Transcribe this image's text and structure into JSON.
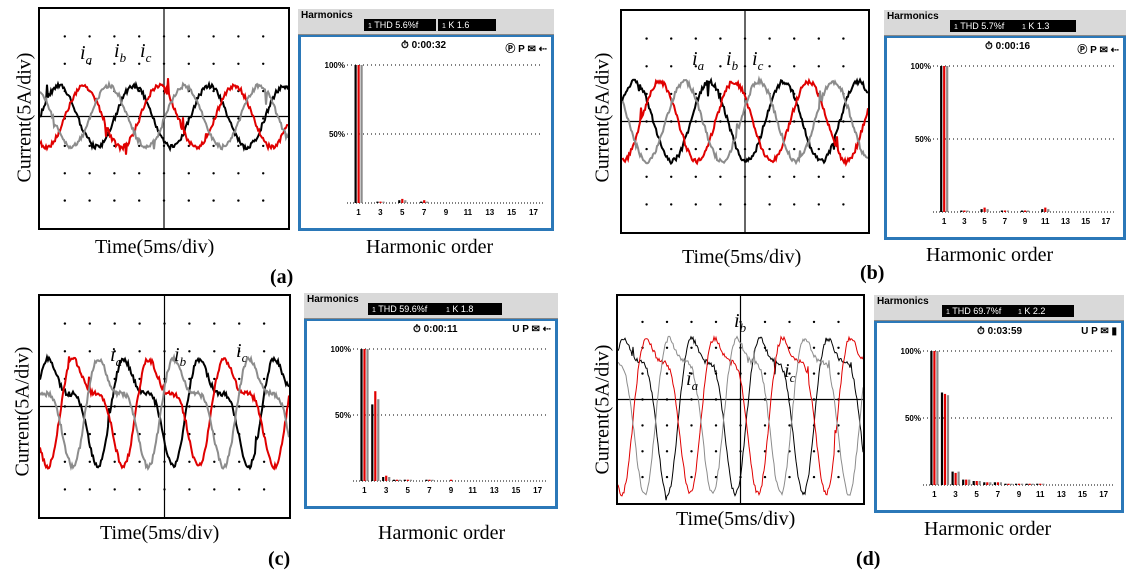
{
  "panels": [
    {
      "letter": "(a)",
      "ylabel": "Current(5A/div)",
      "xlabel": "Time(5ms/div)",
      "series_labels": [
        "ia",
        "ib",
        "ic"
      ],
      "harmonics_title": "Harmonics",
      "thd_text": "THD  5.6%f",
      "thd_prefix": "1",
      "k_text": "K   1.6",
      "k_prefix": "1",
      "timer": "0:00:32",
      "status_icons": "Ⓟ P ✉ ⇠",
      "harmonic_xlabel": "Harmonic order"
    },
    {
      "letter": "(b)",
      "ylabel": "Current(5A/div)",
      "xlabel": "Time(5ms/div)",
      "series_labels": [
        "ia",
        "ib",
        "ic"
      ],
      "harmonics_title": "Harmonics",
      "thd_text": "THD  5.7%f",
      "thd_prefix": "1",
      "k_text": "K   1.3",
      "k_prefix": "1",
      "timer": "0:00:16",
      "status_icons": "Ⓟ P ✉ ⇠",
      "harmonic_xlabel": "Harmonic order"
    },
    {
      "letter": "(c)",
      "ylabel": "Current(5A/div)",
      "xlabel": "Time(5ms/div)",
      "series_labels": [
        "ia",
        "ib",
        "ic"
      ],
      "harmonics_title": "Harmonics",
      "thd_text": "THD 59.6%f",
      "thd_prefix": "1",
      "k_text": "K   1.8",
      "k_prefix": "1",
      "timer": "0:00:11",
      "status_icons": "U P ✉ ⇠",
      "harmonic_xlabel": "Harmonic order"
    },
    {
      "letter": "(d)",
      "ylabel": "Current(5A/div)",
      "xlabel": "Time(5ms/div)",
      "series_labels": [
        "ia",
        "ib",
        "ic"
      ],
      "harmonics_title": "Harmonics",
      "thd_text": "THD 69.7%f",
      "thd_prefix": "1",
      "k_text": "K   2.2",
      "k_prefix": "1",
      "timer": "0:03:59",
      "status_icons": "U P ✉ ▮",
      "harmonic_xlabel": "Harmonic order"
    }
  ],
  "chart_data": [
    {
      "type": "bar",
      "panel": "(a)",
      "categories": [
        "1",
        "2",
        "3",
        "4",
        "5",
        "6",
        "7",
        "8",
        "9",
        "10",
        "11",
        "12",
        "13",
        "14",
        "15",
        "16",
        "17"
      ],
      "tick_labels": [
        "1",
        "3",
        "5",
        "7",
        "9",
        "11",
        "13",
        "15",
        "17"
      ],
      "y_ticks": [
        "100%",
        "50%"
      ],
      "ylim": [
        0,
        100
      ],
      "series": [
        {
          "color": "#000000",
          "values": [
            100,
            0,
            1,
            0,
            2,
            0,
            1,
            0,
            0,
            0,
            0,
            0,
            0,
            0,
            0,
            0,
            0
          ]
        },
        {
          "color": "#e00000",
          "values": [
            100,
            0,
            1,
            0,
            3,
            0,
            2,
            0,
            0,
            0,
            0,
            0,
            0,
            0,
            0,
            0,
            0
          ]
        },
        {
          "color": "#8c8c8c",
          "values": [
            100,
            0,
            1,
            0,
            2,
            0,
            1,
            0,
            0,
            0,
            0,
            0,
            0,
            0,
            0,
            0,
            0
          ]
        }
      ]
    },
    {
      "type": "bar",
      "panel": "(b)",
      "categories": [
        "1",
        "2",
        "3",
        "4",
        "5",
        "6",
        "7",
        "8",
        "9",
        "10",
        "11",
        "12",
        "13",
        "14",
        "15",
        "16",
        "17"
      ],
      "tick_labels": [
        "1",
        "3",
        "5",
        "7",
        "9",
        "11",
        "13",
        "15",
        "17"
      ],
      "y_ticks": [
        "100%",
        "50%"
      ],
      "ylim": [
        0,
        100
      ],
      "series": [
        {
          "color": "#000000",
          "values": [
            100,
            0,
            1,
            0,
            2,
            0,
            1,
            0,
            1,
            0,
            2,
            0,
            0,
            0,
            0,
            0,
            0
          ]
        },
        {
          "color": "#e00000",
          "values": [
            100,
            0,
            1,
            0,
            3,
            0,
            1,
            0,
            1,
            0,
            3,
            0,
            0,
            0,
            0,
            0,
            0
          ]
        },
        {
          "color": "#8c8c8c",
          "values": [
            100,
            0,
            1,
            0,
            2,
            0,
            1,
            0,
            1,
            0,
            2,
            0,
            0,
            0,
            0,
            0,
            0
          ]
        }
      ]
    },
    {
      "type": "bar",
      "panel": "(c)",
      "categories": [
        "1",
        "2",
        "3",
        "4",
        "5",
        "6",
        "7",
        "8",
        "9",
        "10",
        "11",
        "12",
        "13",
        "14",
        "15",
        "16",
        "17"
      ],
      "tick_labels": [
        "1",
        "3",
        "5",
        "7",
        "9",
        "11",
        "13",
        "15",
        "17"
      ],
      "y_ticks": [
        "100%",
        "50%"
      ],
      "ylim": [
        0,
        100
      ],
      "series": [
        {
          "color": "#000000",
          "values": [
            100,
            58,
            3,
            1,
            1,
            0,
            1,
            0,
            0,
            0,
            0,
            0,
            0,
            0,
            0,
            0,
            0
          ]
        },
        {
          "color": "#e00000",
          "values": [
            100,
            68,
            4,
            1,
            1,
            0,
            1,
            0,
            1,
            0,
            0,
            0,
            0,
            0,
            0,
            0,
            0
          ]
        },
        {
          "color": "#8c8c8c",
          "values": [
            100,
            62,
            3,
            1,
            1,
            0,
            1,
            0,
            0,
            0,
            0,
            0,
            0,
            0,
            0,
            0,
            0
          ]
        }
      ]
    },
    {
      "type": "bar",
      "panel": "(d)",
      "categories": [
        "1",
        "2",
        "3",
        "4",
        "5",
        "6",
        "7",
        "8",
        "9",
        "10",
        "11",
        "12",
        "13",
        "14",
        "15",
        "16",
        "17"
      ],
      "tick_labels": [
        "1",
        "3",
        "5",
        "7",
        "9",
        "11",
        "13",
        "15",
        "17"
      ],
      "y_ticks": [
        "100%",
        "50%"
      ],
      "ylim": [
        0,
        100
      ],
      "series": [
        {
          "color": "#000000",
          "values": [
            100,
            69,
            10,
            4,
            3,
            2,
            2,
            1,
            1,
            1,
            1,
            0,
            0,
            0,
            0,
            0,
            0
          ]
        },
        {
          "color": "#e00000",
          "values": [
            100,
            68,
            9,
            4,
            3,
            2,
            2,
            1,
            1,
            1,
            1,
            0,
            0,
            0,
            0,
            0,
            0
          ]
        },
        {
          "color": "#8c8c8c",
          "values": [
            100,
            67,
            10,
            4,
            3,
            2,
            2,
            1,
            1,
            1,
            1,
            0,
            0,
            0,
            0,
            0,
            0
          ]
        }
      ]
    }
  ]
}
